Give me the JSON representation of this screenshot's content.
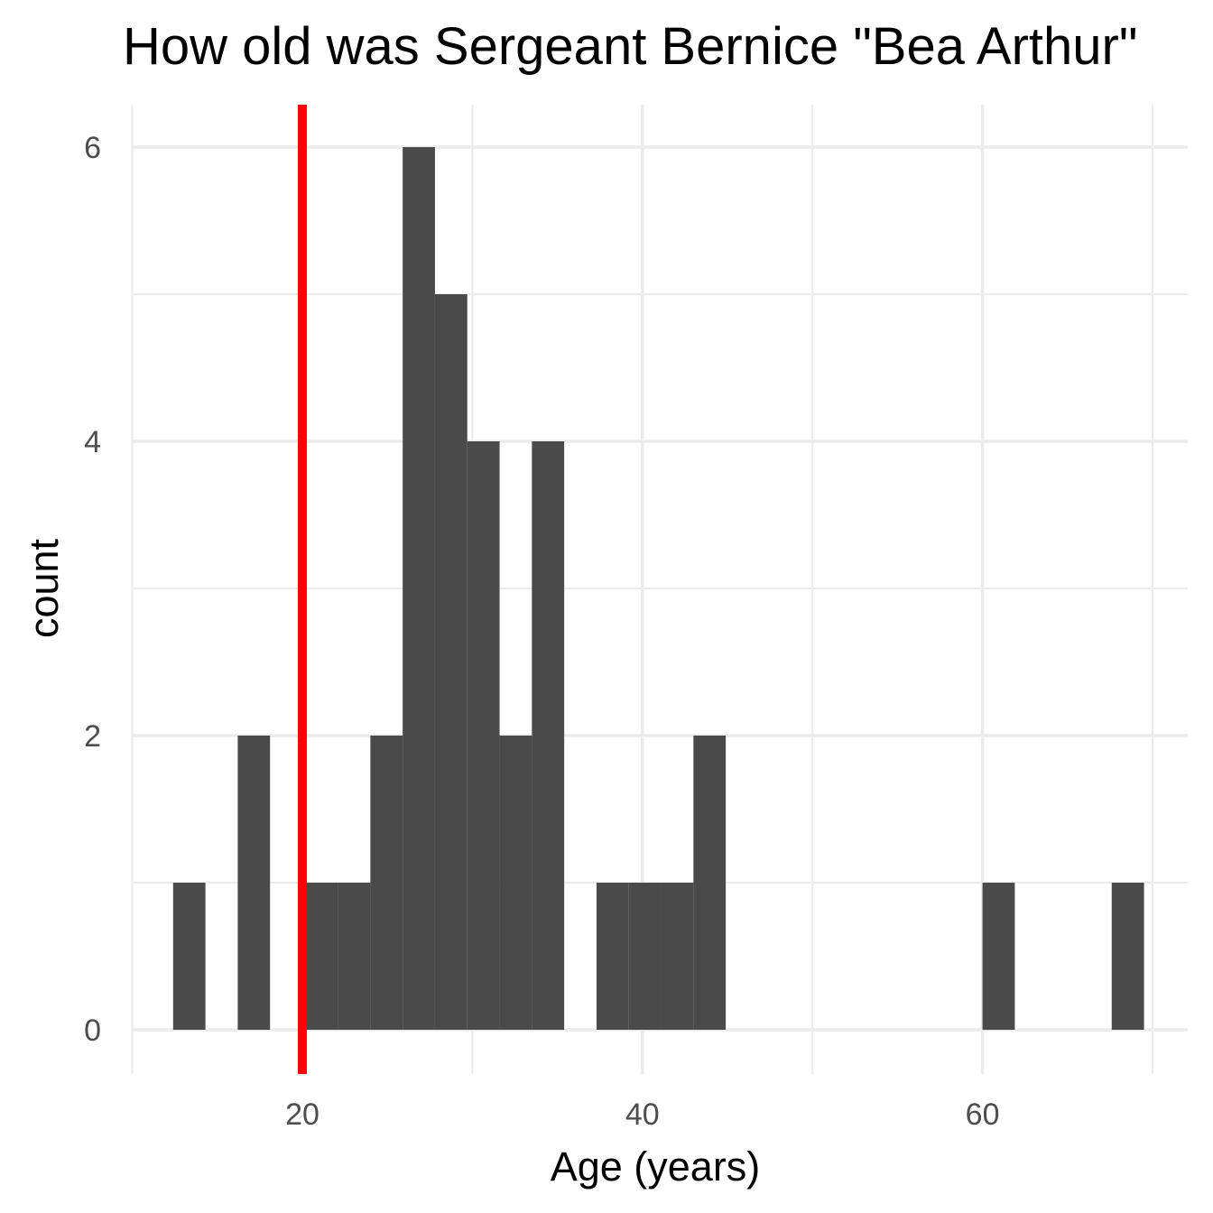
{
  "chart_data": {
    "type": "bar",
    "title": "How old was Sergeant Bernice \"Bea Arthur\"",
    "xlabel": "Age (years)",
    "ylabel": "count",
    "xlim": [
      10,
      71
    ],
    "ylim": [
      0,
      6.3
    ],
    "x_ticks": [
      20,
      40,
      60
    ],
    "y_ticks": [
      0,
      2,
      4,
      6
    ],
    "grid": true,
    "bin_width": 1.9,
    "bins": [
      {
        "start": 12.4,
        "count": 1
      },
      {
        "start": 16.2,
        "count": 2
      },
      {
        "start": 20.2,
        "count": 1
      },
      {
        "start": 22.1,
        "count": 1
      },
      {
        "start": 24.0,
        "count": 2
      },
      {
        "start": 25.9,
        "count": 6
      },
      {
        "start": 27.8,
        "count": 5
      },
      {
        "start": 29.7,
        "count": 4
      },
      {
        "start": 31.6,
        "count": 2
      },
      {
        "start": 33.5,
        "count": 4
      },
      {
        "start": 37.3,
        "count": 1
      },
      {
        "start": 39.2,
        "count": 1
      },
      {
        "start": 41.1,
        "count": 1
      },
      {
        "start": 43.0,
        "count": 2
      },
      {
        "start": 60.0,
        "count": 1
      },
      {
        "start": 67.6,
        "count": 1
      }
    ],
    "reference_line": {
      "x": 20,
      "color": "#ff0000"
    },
    "bar_color": "#4a4a4a",
    "grid_color": "#ebebeb"
  }
}
